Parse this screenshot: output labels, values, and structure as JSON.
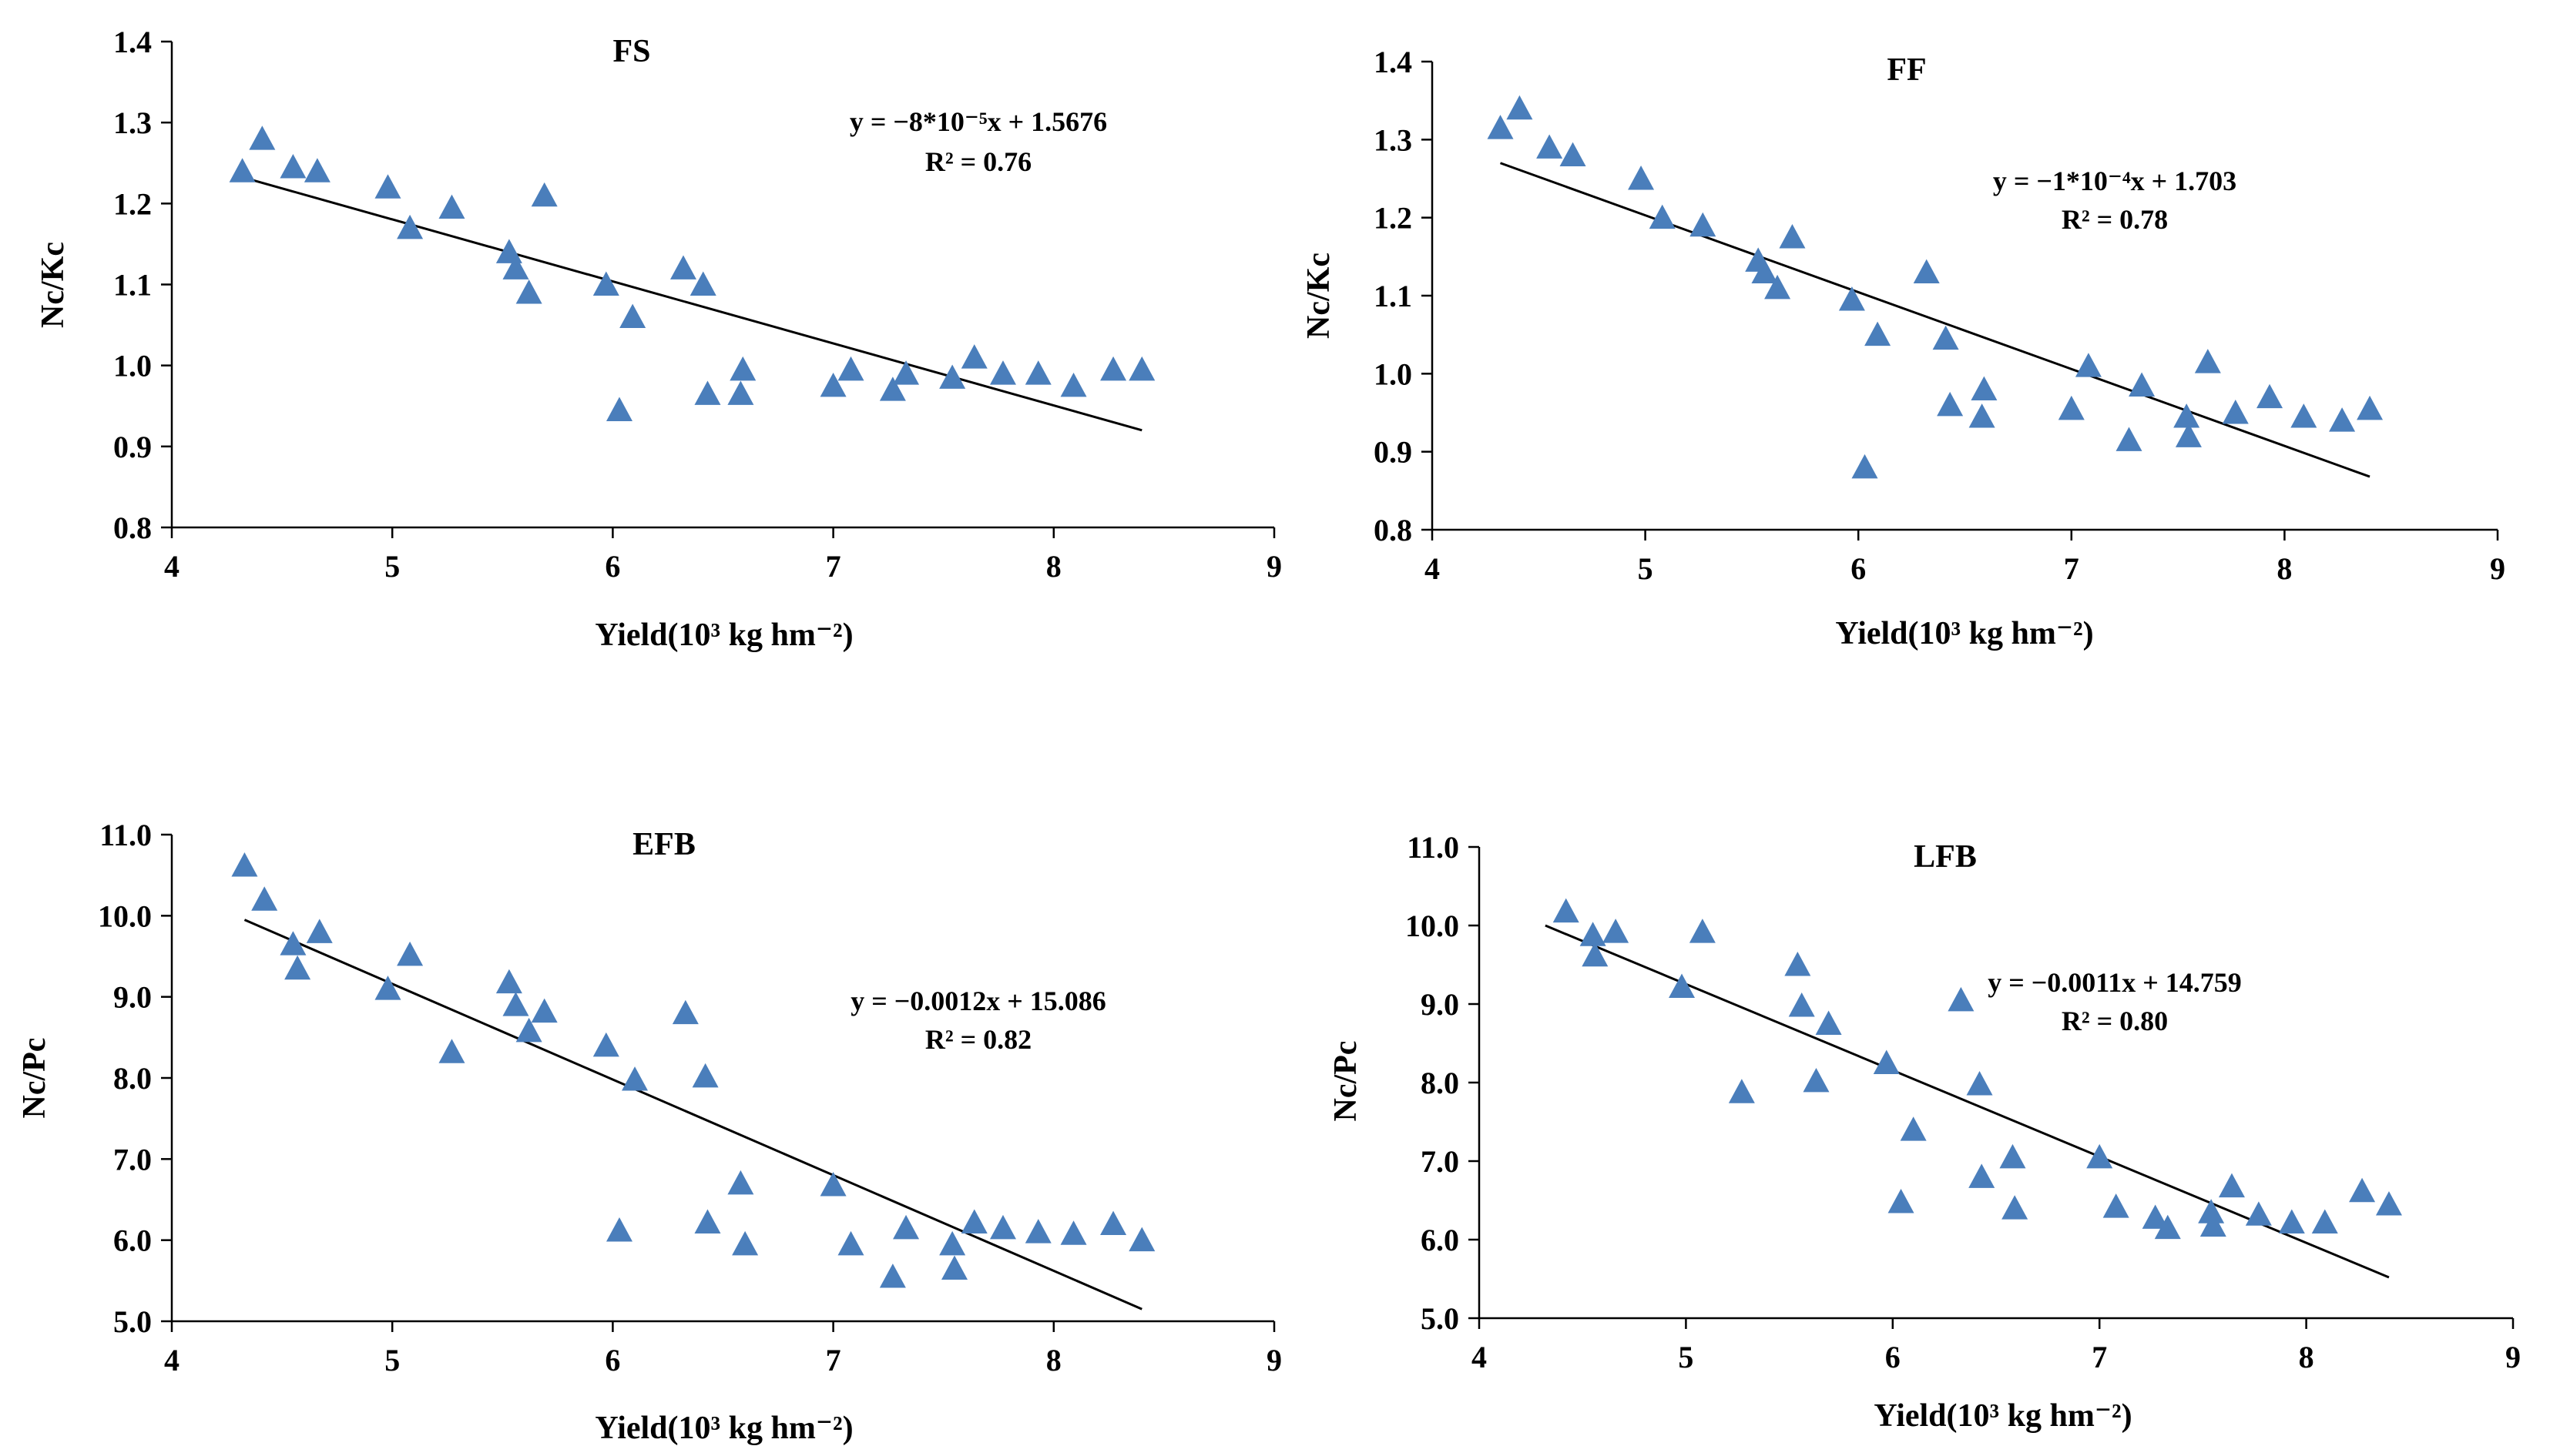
{
  "chart_data": [
    {
      "type": "scatter",
      "title": "FS",
      "xlabel": "Yield(10³ kg hm⁻²)",
      "ylabel": "Nc/Kc",
      "xlim": [
        4,
        9
      ],
      "ylim": [
        0.8,
        1.4
      ],
      "xticks": [
        "4",
        "5",
        "6",
        "7",
        "8",
        "9"
      ],
      "yticks": [
        "0.8",
        "0.9",
        "1.0",
        "1.1",
        "1.2",
        "1.3",
        "1.4"
      ],
      "equation": "y = −8*10⁻⁵x + 1.5676",
      "r2": "R² = 0.76",
      "trend": {
        "x0": 4.3,
        "y0": 1.234,
        "x1": 8.4,
        "y1": 0.92
      },
      "points": [
        [
          4.32,
          1.24
        ],
        [
          4.41,
          1.28
        ],
        [
          4.55,
          1.245
        ],
        [
          4.66,
          1.24
        ],
        [
          4.98,
          1.22
        ],
        [
          5.08,
          1.17
        ],
        [
          5.27,
          1.195
        ],
        [
          5.53,
          1.14
        ],
        [
          5.56,
          1.12
        ],
        [
          5.62,
          1.09
        ],
        [
          5.69,
          1.21
        ],
        [
          5.97,
          1.1
        ],
        [
          6.03,
          0.945
        ],
        [
          6.09,
          1.06
        ],
        [
          6.32,
          1.12
        ],
        [
          6.41,
          1.1
        ],
        [
          6.43,
          0.965
        ],
        [
          6.58,
          0.965
        ],
        [
          6.59,
          0.995
        ],
        [
          7.0,
          0.975
        ],
        [
          7.08,
          0.995
        ],
        [
          7.27,
          0.97
        ],
        [
          7.33,
          0.99
        ],
        [
          7.54,
          0.985
        ],
        [
          7.64,
          1.01
        ],
        [
          7.77,
          0.99
        ],
        [
          7.93,
          0.99
        ],
        [
          8.09,
          0.975
        ],
        [
          8.27,
          0.995
        ],
        [
          8.4,
          0.995
        ]
      ]
    },
    {
      "type": "scatter",
      "title": "FF",
      "xlabel": "Yield(10³ kg hm⁻²)",
      "ylabel": "Nc/Kc",
      "xlim": [
        4,
        9
      ],
      "ylim": [
        0.8,
        1.4
      ],
      "xticks": [
        "4",
        "5",
        "6",
        "7",
        "8",
        "9"
      ],
      "yticks": [
        "0.8",
        "0.9",
        "1.0",
        "1.1",
        "1.2",
        "1.3",
        "1.4"
      ],
      "equation": "y = −1*10⁻⁴x + 1.703",
      "r2": "R² = 0.78",
      "trend": {
        "x0": 4.32,
        "y0": 1.27,
        "x1": 8.4,
        "y1": 0.868
      },
      "points": [
        [
          4.32,
          1.315
        ],
        [
          4.41,
          1.34
        ],
        [
          4.55,
          1.29
        ],
        [
          4.66,
          1.28
        ],
        [
          4.98,
          1.25
        ],
        [
          5.08,
          1.2
        ],
        [
          5.27,
          1.19
        ],
        [
          5.53,
          1.145
        ],
        [
          5.56,
          1.13
        ],
        [
          5.62,
          1.11
        ],
        [
          5.69,
          1.175
        ],
        [
          5.97,
          1.095
        ],
        [
          6.03,
          0.88
        ],
        [
          6.09,
          1.05
        ],
        [
          6.32,
          1.13
        ],
        [
          6.41,
          1.045
        ],
        [
          6.43,
          0.96
        ],
        [
          6.58,
          0.945
        ],
        [
          6.59,
          0.98
        ],
        [
          7.0,
          0.955
        ],
        [
          7.08,
          1.01
        ],
        [
          7.27,
          0.915
        ],
        [
          7.33,
          0.985
        ],
        [
          7.54,
          0.945
        ],
        [
          7.55,
          0.92
        ],
        [
          7.64,
          1.015
        ],
        [
          7.77,
          0.95
        ],
        [
          7.93,
          0.97
        ],
        [
          8.09,
          0.945
        ],
        [
          8.27,
          0.94
        ],
        [
          8.4,
          0.955
        ]
      ]
    },
    {
      "type": "scatter",
      "title": "EFB",
      "xlabel": "Yield(10³ kg hm⁻²)",
      "ylabel": "Nc/Pc",
      "xlim": [
        4,
        9
      ],
      "ylim": [
        5.0,
        11.0
      ],
      "xticks": [
        "4",
        "5",
        "6",
        "7",
        "8",
        "9"
      ],
      "yticks": [
        "5.0",
        "6.0",
        "7.0",
        "8.0",
        "9.0",
        "10.0",
        "11.0"
      ],
      "equation": "y = −0.0012x + 15.086",
      "r2": "R² = 0.82",
      "trend": {
        "x0": 4.33,
        "y0": 9.95,
        "x1": 8.4,
        "y1": 5.15
      },
      "points": [
        [
          4.33,
          10.62
        ],
        [
          4.42,
          10.2
        ],
        [
          4.55,
          9.65
        ],
        [
          4.57,
          9.35
        ],
        [
          4.67,
          9.8
        ],
        [
          4.98,
          9.1
        ],
        [
          5.08,
          9.52
        ],
        [
          5.27,
          8.32
        ],
        [
          5.53,
          9.18
        ],
        [
          5.56,
          8.9
        ],
        [
          5.62,
          8.58
        ],
        [
          5.69,
          8.82
        ],
        [
          5.97,
          8.4
        ],
        [
          6.03,
          6.12
        ],
        [
          6.1,
          7.98
        ],
        [
          6.33,
          8.8
        ],
        [
          6.42,
          8.02
        ],
        [
          6.43,
          6.22
        ],
        [
          6.58,
          6.7
        ],
        [
          6.6,
          5.95
        ],
        [
          7.0,
          6.68
        ],
        [
          7.08,
          5.95
        ],
        [
          7.27,
          5.55
        ],
        [
          7.33,
          6.15
        ],
        [
          7.54,
          5.95
        ],
        [
          7.55,
          5.65
        ],
        [
          7.64,
          6.22
        ],
        [
          7.77,
          6.15
        ],
        [
          7.93,
          6.1
        ],
        [
          8.09,
          6.08
        ],
        [
          8.27,
          6.2
        ],
        [
          8.4,
          6.0
        ]
      ]
    },
    {
      "type": "scatter",
      "title": "LFB",
      "xlabel": "Yield(10³ kg hm⁻²)",
      "ylabel": "Nc/Pc",
      "xlim": [
        4,
        9
      ],
      "ylim": [
        5.0,
        11.0
      ],
      "xticks": [
        "4",
        "5",
        "6",
        "7",
        "8",
        "9"
      ],
      "yticks": [
        "5.0",
        "6.0",
        "7.0",
        "8.0",
        "9.0",
        "10.0",
        "11.0"
      ],
      "equation": "y = −0.0011x + 14.759",
      "r2": "R² = 0.80",
      "trend": {
        "x0": 4.32,
        "y0": 10.0,
        "x1": 8.4,
        "y1": 5.52
      },
      "points": [
        [
          4.42,
          10.18
        ],
        [
          4.55,
          9.88
        ],
        [
          4.56,
          9.62
        ],
        [
          4.66,
          9.92
        ],
        [
          4.98,
          9.22
        ],
        [
          5.08,
          9.92
        ],
        [
          5.27,
          7.88
        ],
        [
          5.54,
          9.5
        ],
        [
          5.56,
          8.98
        ],
        [
          5.63,
          8.02
        ],
        [
          5.69,
          8.75
        ],
        [
          5.97,
          8.25
        ],
        [
          6.04,
          6.48
        ],
        [
          6.1,
          7.4
        ],
        [
          6.33,
          9.05
        ],
        [
          6.42,
          7.98
        ],
        [
          6.43,
          6.8
        ],
        [
          6.58,
          7.05
        ],
        [
          6.59,
          6.4
        ],
        [
          7.0,
          7.05
        ],
        [
          7.08,
          6.42
        ],
        [
          7.27,
          6.28
        ],
        [
          7.33,
          6.15
        ],
        [
          7.54,
          6.35
        ],
        [
          7.55,
          6.18
        ],
        [
          7.64,
          6.68
        ],
        [
          7.77,
          6.32
        ],
        [
          7.93,
          6.22
        ],
        [
          8.09,
          6.22
        ],
        [
          8.27,
          6.62
        ],
        [
          8.4,
          6.45
        ]
      ]
    }
  ]
}
